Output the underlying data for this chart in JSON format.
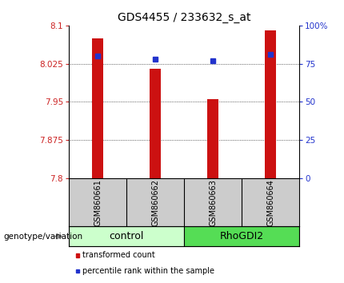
{
  "title": "GDS4455 / 233632_s_at",
  "samples": [
    "GSM860661",
    "GSM860662",
    "GSM860663",
    "GSM860664"
  ],
  "red_values": [
    8.075,
    8.015,
    7.955,
    8.09
  ],
  "blue_values": [
    80,
    78,
    77,
    81
  ],
  "ylim_left": [
    7.8,
    8.1
  ],
  "ylim_right": [
    0,
    100
  ],
  "yticks_left": [
    7.8,
    7.875,
    7.95,
    8.025,
    8.1
  ],
  "yticks_right": [
    0,
    25,
    50,
    75,
    100
  ],
  "ytick_labels_left": [
    "7.8",
    "7.875",
    "7.95",
    "8.025",
    "8.1"
  ],
  "ytick_labels_right": [
    "0",
    "25",
    "50",
    "75",
    "100%"
  ],
  "groups": [
    {
      "label": "control",
      "samples": [
        0,
        1
      ],
      "color": "#ccffcc"
    },
    {
      "label": "RhoGDI2",
      "samples": [
        2,
        3
      ],
      "color": "#55dd55"
    }
  ],
  "bar_color": "#cc1111",
  "dot_color": "#2233cc",
  "bar_width": 0.2,
  "bar_base": 7.8,
  "genotype_label": "genotype/variation",
  "legend_items": [
    {
      "label": "transformed count",
      "color": "#cc1111"
    },
    {
      "label": "percentile rank within the sample",
      "color": "#2233cc"
    }
  ],
  "sample_box_color": "#cccccc",
  "panel_bg": "#ffffff",
  "title_fontsize": 10,
  "tick_fontsize": 7.5,
  "sample_fontsize": 7,
  "group_fontsize": 9,
  "legend_fontsize": 7
}
